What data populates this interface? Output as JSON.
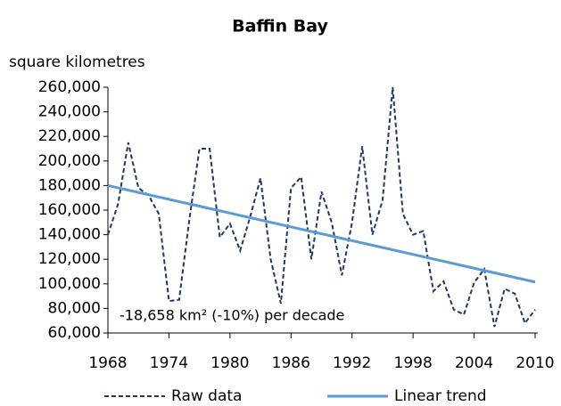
{
  "chart_data": {
    "type": "line",
    "title": "Baffin Bay",
    "y_label": "square kilometres",
    "annotation": "-18,658 km² (-10%) per decade",
    "x": [
      1968,
      1969,
      1970,
      1971,
      1972,
      1973,
      1974,
      1975,
      1976,
      1977,
      1978,
      1979,
      1980,
      1981,
      1982,
      1983,
      1984,
      1985,
      1986,
      1987,
      1988,
      1989,
      1990,
      1991,
      1992,
      1993,
      1994,
      1995,
      1996,
      1997,
      1998,
      1999,
      2000,
      2001,
      2002,
      2003,
      2004,
      2005,
      2006,
      2007,
      2008,
      2009,
      2010
    ],
    "series": [
      {
        "name": "Raw data",
        "color": "#1f3864",
        "dashed": true,
        "values": [
          140000,
          165000,
          215000,
          178000,
          172000,
          157000,
          86000,
          87000,
          152000,
          210000,
          210000,
          138000,
          149000,
          127000,
          155000,
          186000,
          120000,
          84000,
          178000,
          187000,
          120000,
          175000,
          150000,
          107000,
          150000,
          212000,
          140000,
          168000,
          260000,
          157000,
          140000,
          143000,
          94000,
          102000,
          79000,
          75000,
          101000,
          112000,
          65000,
          96000,
          92000,
          68000,
          79000
        ]
      },
      {
        "name": "Linear trend",
        "color": "#5b9bd5",
        "dashed": false,
        "x": [
          1968,
          2010
        ],
        "values": [
          180000,
          101500
        ]
      }
    ],
    "xlim": [
      1968,
      2010
    ],
    "xticks": [
      1968,
      1974,
      1980,
      1986,
      1992,
      1998,
      2004,
      2010
    ],
    "ylim": [
      60000,
      260000
    ],
    "yticks": [
      {
        "value": 60000,
        "label": "60,000"
      },
      {
        "value": 80000,
        "label": "80,000"
      },
      {
        "value": 100000,
        "label": "100,000"
      },
      {
        "value": 120000,
        "label": "120,000"
      },
      {
        "value": 140000,
        "label": "140,000"
      },
      {
        "value": 160000,
        "label": "160,000"
      },
      {
        "value": 180000,
        "label": "180,000"
      },
      {
        "value": 200000,
        "label": "200,000"
      },
      {
        "value": 220000,
        "label": "220,000"
      },
      {
        "value": 240000,
        "label": "240,000"
      },
      {
        "value": 260000,
        "label": "260,000"
      }
    ],
    "legend": "bottom"
  }
}
